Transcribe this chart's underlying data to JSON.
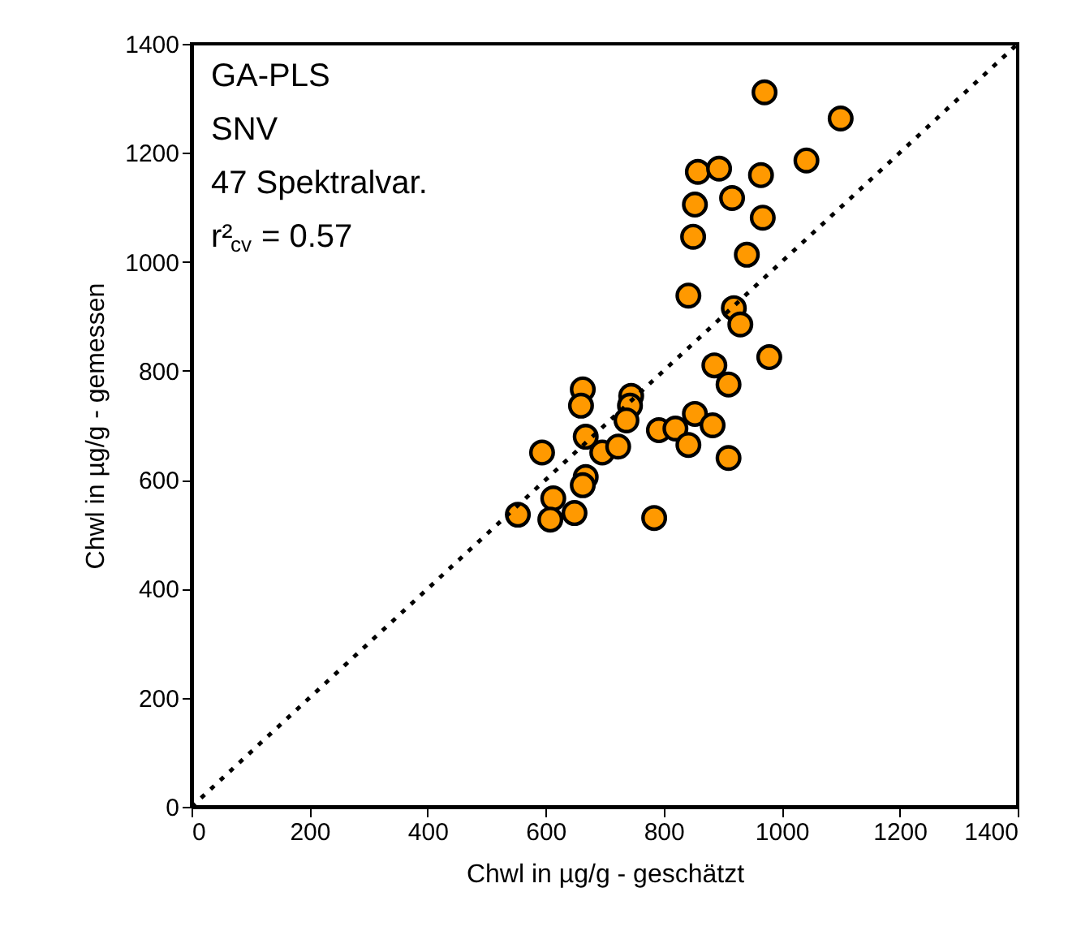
{
  "chart_data": {
    "type": "scatter",
    "xlabel": "Chwl in µg/g - geschätzt",
    "ylabel": "Chwl in µg/g - gemessen",
    "xlim": [
      0,
      1400
    ],
    "ylim": [
      0,
      1400
    ],
    "xticks": [
      0,
      200,
      400,
      600,
      800,
      1000,
      1200,
      1400
    ],
    "yticks": [
      0,
      200,
      400,
      600,
      800,
      1000,
      1200,
      1400
    ],
    "grid": false,
    "annotations": [
      "GA-PLS",
      "SNV",
      "47 Spektralvar.",
      "r²$_{cv}$ = 0.57"
    ],
    "series": [
      {
        "color": "#ff9900",
        "marker": "circle",
        "x": [
          971,
          1100,
          858,
          894,
          965,
          1042,
          916,
          853,
          968,
          850,
          941,
          842,
          919,
          930,
          979,
          886,
          663,
          660,
          745,
          743,
          737,
          668,
          594,
          696,
          723,
          792,
          820,
          853,
          883,
          842,
          910,
          910,
          668,
          663,
          613,
          553,
          608,
          649,
          784
        ],
        "values": [
          1311,
          1263,
          1165,
          1171,
          1159,
          1186,
          1117,
          1105,
          1081,
          1046,
          1013,
          938,
          915,
          885,
          825,
          810,
          766,
          736,
          754,
          736,
          709,
          679,
          650,
          650,
          661,
          691,
          694,
          721,
          700,
          664,
          640,
          775,
          605,
          590,
          566,
          536,
          527,
          539,
          530
        ]
      },
      {
        "type": "line",
        "line_style": "dotted",
        "color": "#000000",
        "x": [
          0,
          1400
        ],
        "values": [
          0,
          1400
        ]
      }
    ]
  }
}
